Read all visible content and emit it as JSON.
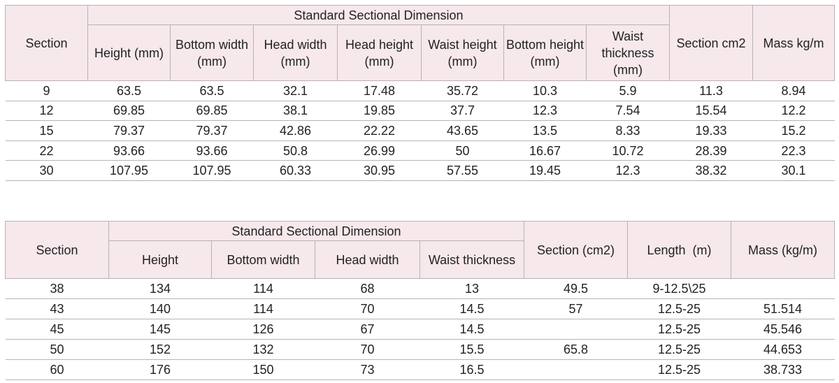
{
  "table1": {
    "header": {
      "section": "Section",
      "group": "Standard Sectional Dimension",
      "sub": [
        "Height (mm)",
        "Bottom width (mm)",
        "Head width (mm)",
        "Head height (mm)",
        "Waist height (mm)",
        "Bottom height (mm)",
        "Waist thickness (mm)"
      ],
      "after": [
        "Section cm2",
        "Mass kg/m"
      ]
    },
    "rows": [
      [
        "9",
        "63.5",
        "63.5",
        "32.1",
        "17.48",
        "35.72",
        "10.3",
        "5.9",
        "11.3",
        "8.94"
      ],
      [
        "12",
        "69.85",
        "69.85",
        "38.1",
        "19.85",
        "37.7",
        "12.3",
        "7.54",
        "15.54",
        "12.2"
      ],
      [
        "15",
        "79.37",
        "79.37",
        "42.86",
        "22.22",
        "43.65",
        "13.5",
        "8.33",
        "19.33",
        "15.2"
      ],
      [
        "22",
        "93.66",
        "93.66",
        "50.8",
        "26.99",
        "50",
        "16.67",
        "10.72",
        "28.39",
        "22.3"
      ],
      [
        "30",
        "107.95",
        "107.95",
        "60.33",
        "30.95",
        "57.55",
        "19.45",
        "12.3",
        "38.32",
        "30.1"
      ]
    ]
  },
  "table2": {
    "header": {
      "section": "Section",
      "group": "Standard Sectional Dimension",
      "sub": [
        "Height",
        "Bottom width",
        "Head width",
        "Waist thickness"
      ],
      "after": [
        "Section (cm2)",
        "Length  (m)",
        "Mass (kg/m)"
      ]
    },
    "rows": [
      [
        "38",
        "134",
        "114",
        "68",
        "13",
        "49.5",
        "9-12.5\\25",
        null
      ],
      [
        "43",
        "140",
        "114",
        "70",
        "14.5",
        "57",
        "12.5-25",
        "51.514"
      ],
      [
        "45",
        "145",
        "126",
        "67",
        "14.5",
        null,
        "12.5-25",
        "45.546"
      ],
      [
        "50",
        "152",
        "132",
        "70",
        "15.5",
        "65.8",
        "12.5-25",
        "44.653"
      ],
      [
        "60",
        "176",
        "150",
        "73",
        "16.5",
        null,
        "12.5-25",
        "38.733"
      ]
    ]
  }
}
